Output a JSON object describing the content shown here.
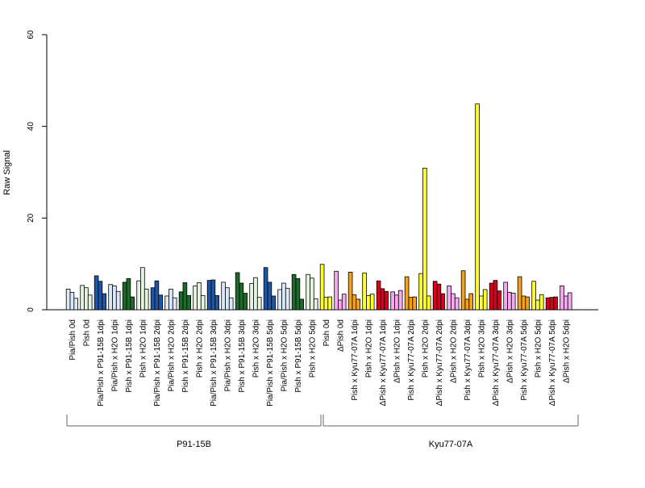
{
  "chart_data": {
    "type": "bar",
    "ylabel": "Raw Signal",
    "ylim": [
      0,
      60
    ],
    "yticks": [
      0,
      20,
      40,
      60
    ],
    "grid": false,
    "legend": "none",
    "colors": {
      "light_blue": "#dbe8f7",
      "light_green": "#e4f4df",
      "dark_blue": "#1f57a6",
      "dark_green": "#1d6b2a",
      "yellow": "#ffff33",
      "pink": "#f7aaf0",
      "orange": "#f5a11a",
      "red": "#d8001c"
    },
    "categories": [
      {
        "label": "Pia/Pish 0d",
        "color": "light_blue",
        "values": [
          4.5,
          3.8,
          2.5
        ]
      },
      {
        "label": "Pish 0d",
        "color": "light_green",
        "values": [
          5.3,
          4.8,
          3.2
        ]
      },
      {
        "label": "Pia/Pish x P91-15B 1dpi",
        "color": "dark_blue",
        "values": [
          7.4,
          6.2,
          3.5
        ]
      },
      {
        "label": "Pia/Pish x H2O 1dpi",
        "color": "light_blue",
        "values": [
          5.5,
          5.2,
          4.0
        ]
      },
      {
        "label": "Pish x P91-15B 1dpi",
        "color": "dark_green",
        "values": [
          6.0,
          6.8,
          2.8
        ]
      },
      {
        "label": "Pish x H2O 1dpi",
        "color": "light_green",
        "values": [
          6.3,
          9.2,
          4.5
        ]
      },
      {
        "label": "Pia/Pish x P91-15B 2dpi",
        "color": "dark_blue",
        "values": [
          4.8,
          6.3,
          3.2
        ]
      },
      {
        "label": "Pia/Pish x H2O 2dpi",
        "color": "light_blue",
        "values": [
          3.0,
          4.5,
          2.6
        ]
      },
      {
        "label": "Pish x P91-15B 2dpi",
        "color": "dark_green",
        "values": [
          3.9,
          5.9,
          3.1
        ]
      },
      {
        "label": "Pish x H2O 2dpi",
        "color": "light_green",
        "values": [
          5.2,
          5.9,
          3.1
        ]
      },
      {
        "label": "Pia/Pish x P91-15B 3dpi",
        "color": "dark_blue",
        "values": [
          6.4,
          6.5,
          3.1
        ]
      },
      {
        "label": "Pia/Pish x H2O 3dpi",
        "color": "light_blue",
        "values": [
          6.0,
          4.8,
          2.6
        ]
      },
      {
        "label": "Pish x P91-15B 3dpi",
        "color": "dark_green",
        "values": [
          8.1,
          5.8,
          3.6
        ]
      },
      {
        "label": "Pish x H2O 3dpi",
        "color": "light_green",
        "values": [
          5.7,
          7.0,
          2.7
        ]
      },
      {
        "label": "Pia/Pish x P91-15B 5dpi",
        "color": "dark_blue",
        "values": [
          9.2,
          6.0,
          3.0
        ]
      },
      {
        "label": "Pia/Pish x H2O 5dpi",
        "color": "light_blue",
        "values": [
          4.4,
          5.8,
          4.7
        ]
      },
      {
        "label": "Pish x P91-15B 5dpi",
        "color": "dark_green",
        "values": [
          7.7,
          6.8,
          2.3
        ]
      },
      {
        "label": "Pish x H2O 5dpi",
        "color": "light_green",
        "values": [
          7.7,
          6.9,
          2.4
        ]
      },
      {
        "label": "Pish 0d",
        "color": "yellow",
        "values": [
          9.9,
          2.7,
          2.8
        ]
      },
      {
        "label": "ΔPish 0d",
        "color": "pink",
        "values": [
          8.4,
          2.1,
          3.4
        ]
      },
      {
        "label": "Pish x Kyu77-07A 1dpi",
        "color": "orange",
        "values": [
          8.2,
          3.3,
          2.3
        ]
      },
      {
        "label": "Pish x H2O 1dpi",
        "color": "yellow",
        "values": [
          8.0,
          3.1,
          3.4
        ]
      },
      {
        "label": "ΔPish x Kyu77-07A 1dpi",
        "color": "red",
        "values": [
          6.3,
          4.6,
          4.0
        ]
      },
      {
        "label": "ΔPish x H2O 1dpi",
        "color": "pink",
        "values": [
          3.9,
          3.2,
          4.2
        ]
      },
      {
        "label": "Pish x Kyu77-07A 2dpi",
        "color": "orange",
        "values": [
          7.2,
          2.7,
          2.8
        ]
      },
      {
        "label": "Pish x H2O 2dpi",
        "color": "yellow",
        "values": [
          7.9,
          30.9,
          3.0
        ]
      },
      {
        "label": "ΔPish x Kyu77-07A 2dpi",
        "color": "red",
        "values": [
          6.2,
          5.6,
          3.5
        ]
      },
      {
        "label": "ΔPish x H2O 2dpi",
        "color": "pink",
        "values": [
          5.2,
          3.5,
          2.6
        ]
      },
      {
        "label": "Pish x Kyu77-07A 3dpi",
        "color": "orange",
        "values": [
          8.5,
          2.3,
          3.5
        ]
      },
      {
        "label": "Pish x H2O 3dpi",
        "color": "yellow",
        "values": [
          44.9,
          3.0,
          4.4
        ]
      },
      {
        "label": "ΔPish x Kyu77-07A 3dpi",
        "color": "red",
        "values": [
          5.8,
          6.4,
          4.1
        ]
      },
      {
        "label": "ΔPish x H2O 3dpi",
        "color": "pink",
        "values": [
          6.0,
          3.8,
          3.6
        ]
      },
      {
        "label": "Pish x Kyu77-07A 5dpi",
        "color": "orange",
        "values": [
          7.2,
          3.0,
          2.8
        ]
      },
      {
        "label": "Pish x H2O 5dpi",
        "color": "yellow",
        "values": [
          6.2,
          2.1,
          3.3
        ]
      },
      {
        "label": "ΔPish x Kyu77-07A 5dpi",
        "color": "red",
        "values": [
          2.6,
          2.7,
          2.8
        ]
      },
      {
        "label": "ΔPish x H2O 5dpi",
        "color": "pink",
        "values": [
          5.2,
          3.0,
          3.7
        ]
      }
    ],
    "groups": [
      {
        "label": "P91-15B",
        "start": 0,
        "end": 17
      },
      {
        "label": "Kyu77-07A",
        "start": 18,
        "end": 35
      }
    ]
  }
}
